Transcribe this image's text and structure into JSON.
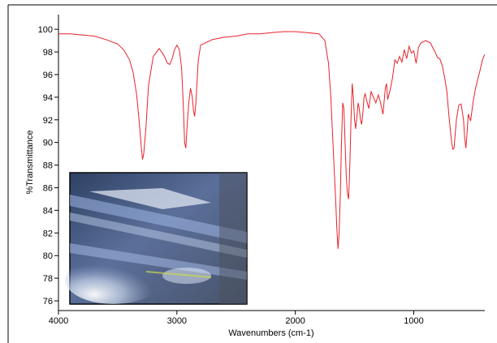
{
  "chart_data": {
    "type": "line",
    "xlabel": "Wavenumbers (cm-1)",
    "ylabel": "%Transmittance",
    "xlim": [
      4000,
      400
    ],
    "ylim": [
      75.5,
      100.8
    ],
    "x_reversed": true,
    "grid": false,
    "legend": "none",
    "x_ticks": [
      4000,
      3000,
      2000,
      1000
    ],
    "y_ticks": [
      76,
      78,
      80,
      82,
      84,
      86,
      88,
      90,
      92,
      94,
      96,
      98,
      100
    ],
    "line_color": "#e8222b",
    "series": [
      {
        "x": [
          4000,
          3900,
          3800,
          3700,
          3600,
          3500,
          3450,
          3400,
          3370,
          3340,
          3320,
          3300,
          3290,
          3280,
          3260,
          3240,
          3200,
          3150,
          3110,
          3080,
          3060,
          3040,
          3020,
          3000,
          2980,
          2960,
          2945,
          2935,
          2925,
          2915,
          2900,
          2885,
          2870,
          2860,
          2850,
          2840,
          2820,
          2800,
          2700,
          2600,
          2500,
          2400,
          2300,
          2200,
          2100,
          2000,
          1900,
          1800,
          1750,
          1720,
          1700,
          1680,
          1660,
          1650,
          1640,
          1630,
          1620,
          1610,
          1600,
          1590,
          1580,
          1570,
          1560,
          1550,
          1540,
          1530,
          1520,
          1510,
          1500,
          1490,
          1480,
          1470,
          1460,
          1450,
          1440,
          1430,
          1420,
          1410,
          1400,
          1380,
          1360,
          1340,
          1320,
          1300,
          1280,
          1260,
          1240,
          1230,
          1220,
          1200,
          1180,
          1160,
          1140,
          1120,
          1100,
          1080,
          1060,
          1040,
          1020,
          1000,
          980,
          960,
          940,
          900,
          860,
          820,
          800,
          780,
          760,
          740,
          720,
          710,
          700,
          690,
          680,
          670,
          660,
          640,
          620,
          600,
          580,
          570,
          560,
          550,
          540,
          520,
          500,
          480,
          460,
          440,
          420,
          400
        ],
        "y": [
          99.6,
          99.6,
          99.5,
          99.4,
          99.1,
          98.7,
          98.2,
          97.3,
          96.2,
          94.2,
          92.0,
          89.5,
          88.5,
          89.0,
          91.5,
          95.0,
          97.6,
          98.3,
          97.7,
          97.0,
          96.9,
          97.4,
          98.2,
          98.6,
          98.2,
          96.5,
          93.0,
          90.0,
          89.5,
          91.2,
          93.5,
          94.8,
          94.0,
          92.8,
          92.3,
          93.5,
          97.2,
          98.6,
          99.1,
          99.3,
          99.4,
          99.6,
          99.6,
          99.7,
          99.8,
          99.8,
          99.7,
          99.6,
          99.0,
          97.0,
          94.0,
          89.5,
          85.0,
          82.5,
          80.6,
          82.0,
          85.5,
          90.0,
          93.5,
          93.0,
          90.0,
          87.0,
          85.5,
          85.0,
          88.0,
          92.0,
          95.2,
          94.0,
          92.0,
          91.2,
          92.3,
          93.5,
          93.0,
          92.0,
          91.6,
          92.6,
          94.0,
          94.3,
          93.8,
          93.0,
          94.5,
          94.0,
          93.5,
          94.2,
          93.5,
          92.5,
          94.8,
          95.2,
          93.8,
          94.6,
          95.7,
          97.3,
          97.0,
          97.6,
          97.1,
          98.2,
          97.4,
          98.5,
          97.9,
          98.1,
          97.0,
          98.4,
          98.8,
          99.0,
          98.8,
          98.0,
          97.5,
          97.4,
          96.8,
          95.8,
          94.5,
          93.2,
          92.0,
          91.0,
          90.0,
          89.4,
          89.5,
          92.0,
          93.3,
          93.4,
          92.0,
          90.4,
          89.5,
          90.8,
          92.5,
          91.9,
          93.5,
          94.7,
          95.6,
          96.4,
          97.3,
          97.8
        ]
      }
    ],
    "inset_image": "infrared-microscope-view"
  }
}
